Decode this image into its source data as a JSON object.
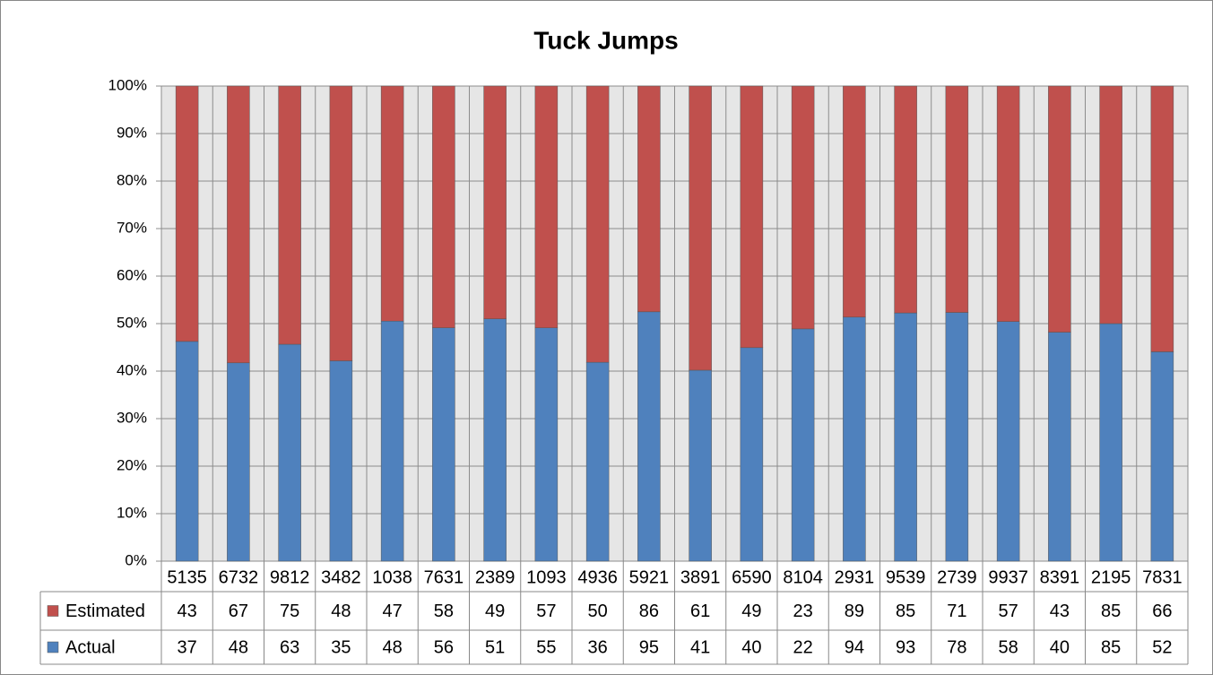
{
  "chart_data": {
    "type": "bar",
    "stacking": "percent",
    "title": "Tuck Jumps",
    "categories": [
      "5135",
      "6732",
      "9812",
      "3482",
      "1038",
      "7631",
      "2389",
      "1093",
      "4936",
      "5921",
      "3891",
      "6590",
      "8104",
      "2931",
      "9539",
      "2739",
      "9937",
      "8391",
      "2195",
      "7831"
    ],
    "series": [
      {
        "name": "Actual",
        "color": "#4f81bd",
        "values": [
          37,
          48,
          63,
          35,
          48,
          56,
          51,
          55,
          36,
          95,
          41,
          40,
          22,
          94,
          93,
          78,
          58,
          40,
          85,
          52
        ]
      },
      {
        "name": "Estimated",
        "color": "#c0504d",
        "values": [
          43,
          67,
          75,
          48,
          47,
          58,
          49,
          57,
          50,
          86,
          61,
          49,
          23,
          89,
          85,
          71,
          57,
          43,
          85,
          66
        ]
      }
    ],
    "ylim": [
      0,
      100
    ],
    "yticks": [
      {
        "value": 0,
        "label": "0%"
      },
      {
        "value": 10,
        "label": "10%"
      },
      {
        "value": 20,
        "label": "20%"
      },
      {
        "value": 30,
        "label": "30%"
      },
      {
        "value": 40,
        "label": "40%"
      },
      {
        "value": 50,
        "label": "50%"
      },
      {
        "value": 60,
        "label": "60%"
      },
      {
        "value": 70,
        "label": "70%"
      },
      {
        "value": 80,
        "label": "80%"
      },
      {
        "value": 90,
        "label": "90%"
      },
      {
        "value": 100,
        "label": "100%"
      }
    ],
    "grid": true,
    "data_table": true
  }
}
